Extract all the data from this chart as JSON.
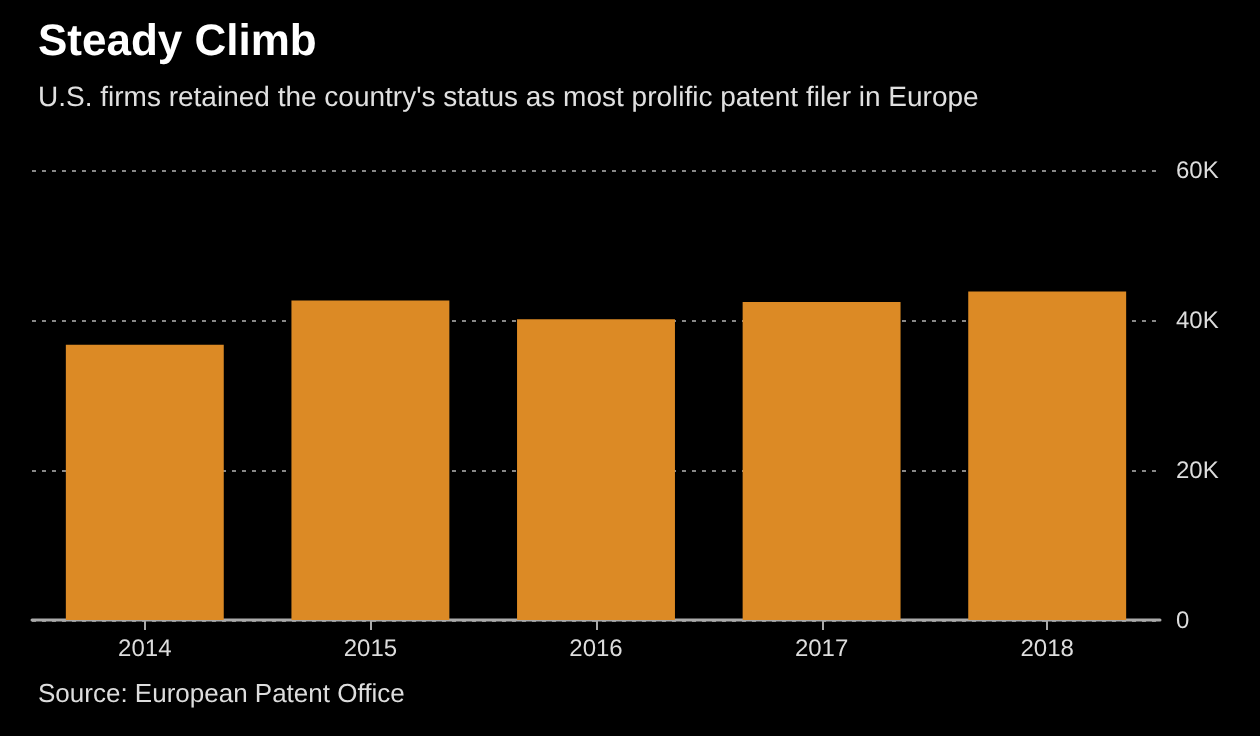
{
  "chart_data": {
    "type": "bar",
    "title": "Steady Climb",
    "subtitle": "U.S. firms retained the country's status as most prolific patent filer in Europe",
    "categories": [
      "2014",
      "2015",
      "2016",
      "2017",
      "2018"
    ],
    "values": [
      36700,
      42600,
      40100,
      42400,
      43800
    ],
    "color": "#dc8a25",
    "ylim": [
      0,
      60000
    ],
    "yticks": [
      0,
      {
        "value": 20000,
        "label": "20K"
      },
      {
        "value": 40000,
        "label": "40K"
      },
      {
        "value": 60000,
        "label": "60K"
      }
    ],
    "grid": "y",
    "annotations": [
      "Source: European Patent Office"
    ]
  }
}
